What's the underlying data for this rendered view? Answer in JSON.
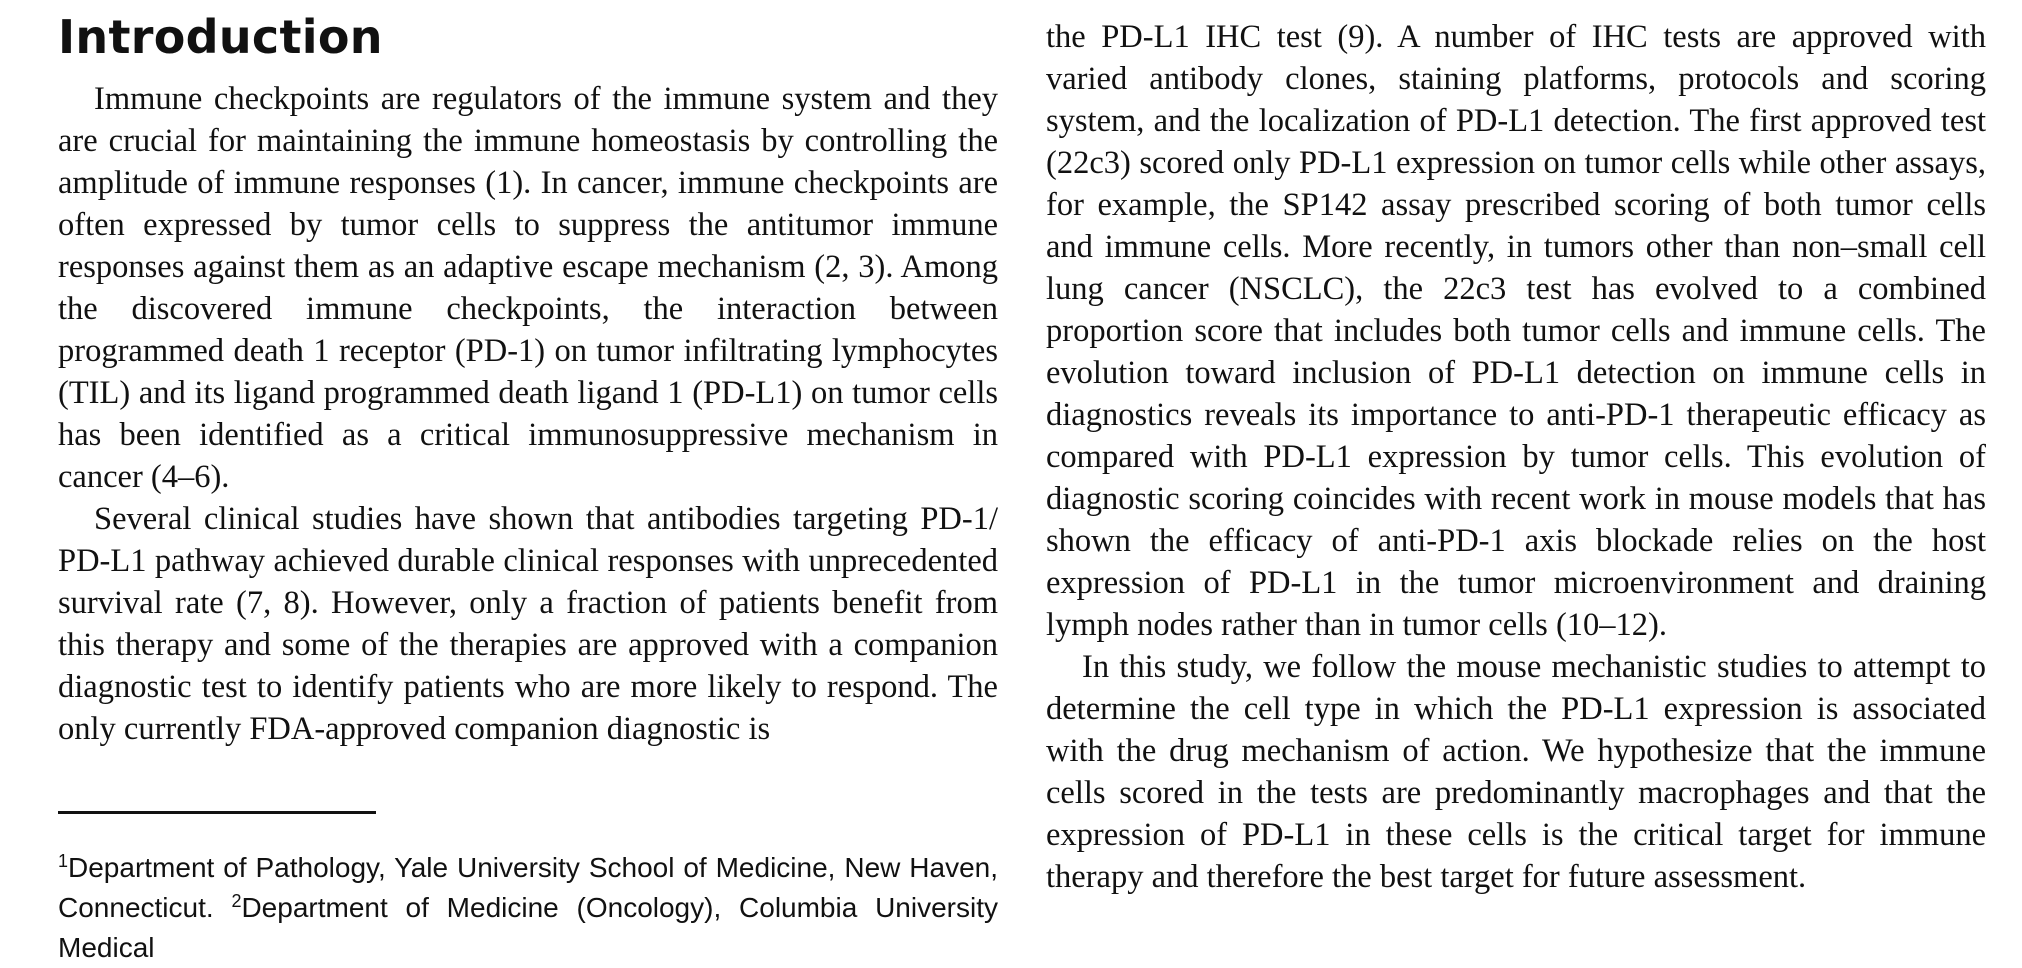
{
  "section": {
    "heading": "Introduction"
  },
  "left_column": {
    "paragraph_1": "Immune checkpoints are regulators of the immune system and they are crucial for maintaining the immune homeostasis by controlling the amplitude of immune responses (1). In cancer, immune checkpoints are often expressed by tumor cells to suppress the antitumor immune responses against them as an adaptive escape mechanism (2, 3). Among the discovered immune checkpoints, the interaction between programmed death 1 receptor (PD-1) on tumor infiltrating lympho­cytes (TIL) and its ligand programmed death ligand 1 (PD-L1) on tumor cells has been identified as a critical immunosuppressive mechanism in cancer (4–6).",
    "paragraph_2": "Several clinical studies have shown that antibodies targeting PD-1/​PD-L1 pathway achieved durable clinical responses with unprece­dented survival rate (7, 8). However, only a fraction of patients benefit from this therapy and some of the therapies are approved with a companion diagnostic test to identify patients who are more likely to respond. The only currently FDA-approved companion diagnostic is"
  },
  "right_column": {
    "paragraph_2_cont": "the PD-L1 IHC test (9). A number of IHC tests are approved with varied antibody clones, staining platforms, protocols and scoring system, and the localization of PD-L1 detection. The first approved test (22c3) scored only PD-L1 expression on tumor cells while other assays, for example, the SP142 assay prescribed scoring of both tumor cells and immune cells. More recently, in tumors other than non–small cell lung cancer (NSCLC), the 22c3 test has evolved to a combined proportion score that includes both tumor cells and immune cells. The evolution toward inclusion of PD-L1 detection on immune cells in diagnostics reveals its importance to anti-PD-1 therapeutic efficacy as compared with PD-L1 expression by tumor cells. This evolution of diagnostic scoring coincides with recent work in mouse models that has shown the efficacy of anti-PD-1 axis blockade relies on the host expression of PD-L1 in the tumor microenvironment and draining lymph nodes rather than in tumor cells (10–12).",
    "paragraph_3": "In this study, we follow the mouse mechanistic studies to attempt to determine the cell type in which the PD-L1 expression is associated with the drug mechanism of action. We hypothesize that the immune cells scored in the tests are predominantly macrophages and that the expression of PD-L1 in these cells is the critical target for immune therapy and therefore the best target for future assessment."
  },
  "footnote": {
    "marker_1": "1",
    "text_1": "Department of Pathology, Yale University School of Medicine, New Haven, Connecticut. ",
    "marker_2": "2",
    "text_2": "Department of Medicine (Oncology), Columbia University Medical"
  }
}
